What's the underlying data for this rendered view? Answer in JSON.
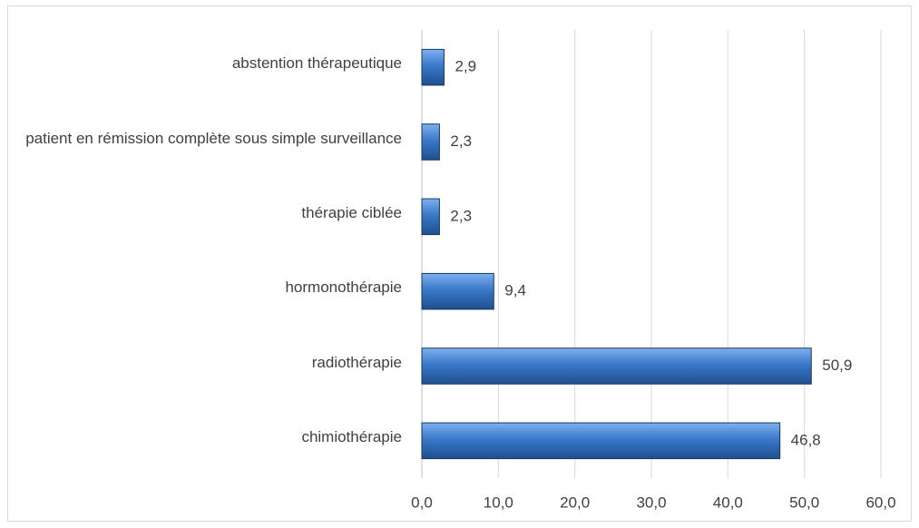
{
  "chart_data": {
    "type": "bar",
    "orientation": "horizontal",
    "categories": [
      "chimiothérapie",
      "radiothérapie",
      "hormonothérapie",
      "thérapie ciblée",
      "patient en rémission complète sous simple surveillance",
      "abstention thérapeutique"
    ],
    "values": [
      46.8,
      50.9,
      9.4,
      2.3,
      2.3,
      2.9
    ],
    "value_labels": [
      "46,8",
      "50,9",
      "9,4",
      "2,3",
      "2,3",
      "2,9"
    ],
    "color": "#3a78c9",
    "xlim": [
      0,
      60
    ],
    "xticks": [
      {
        "value": 0,
        "label": "0,0"
      },
      {
        "value": 10,
        "label": "10,0"
      },
      {
        "value": 20,
        "label": "20,0"
      },
      {
        "value": 30,
        "label": "30,0"
      },
      {
        "value": 40,
        "label": "40,0"
      },
      {
        "value": 50,
        "label": "50,0"
      },
      {
        "value": 60,
        "label": "60,0"
      }
    ],
    "grid": true
  }
}
